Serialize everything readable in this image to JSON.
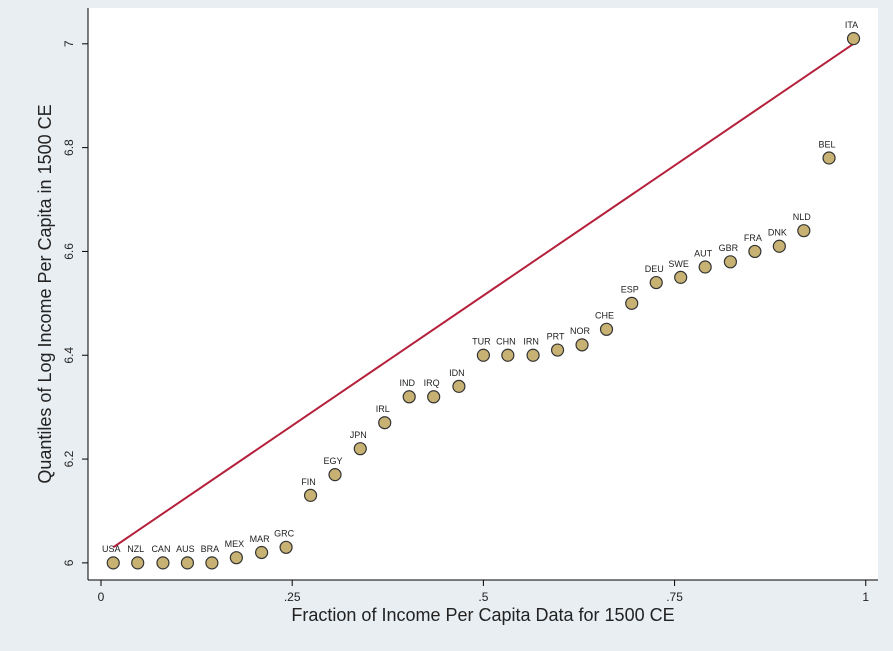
{
  "chart_data": {
    "type": "scatter",
    "x_label": "Fraction of Income Per Capita Data for 1500 CE",
    "y_label": "Quantiles of Log Income Per Capita in 1500 CE",
    "x": [
      0.016,
      0.048,
      0.081,
      0.113,
      0.145,
      0.177,
      0.21,
      0.242,
      0.274,
      0.306,
      0.339,
      0.371,
      0.403,
      0.435,
      0.468,
      0.5,
      0.532,
      0.565,
      0.597,
      0.629,
      0.661,
      0.694,
      0.726,
      0.758,
      0.79,
      0.823,
      0.855,
      0.887,
      0.919,
      0.952,
      0.984
    ],
    "series": [
      {
        "color": "#c8b273",
        "labels": [
          "USA",
          "NZL",
          "CAN",
          "AUS",
          "BRA",
          "MEX",
          "MAR",
          "GRC",
          "FIN",
          "EGY",
          "JPN",
          "IRL",
          "IND",
          "IRQ",
          "IDN",
          "TUR",
          "CHN",
          "IRN",
          "PRT",
          "NOR",
          "CHE",
          "ESP",
          "DEU",
          "SWE",
          "AUT",
          "GBR",
          "FRA",
          "DNK",
          "NLD",
          "BEL",
          "ITA"
        ],
        "values": [
          6.0,
          6.0,
          6.0,
          6.0,
          6.0,
          6.01,
          6.02,
          6.03,
          6.13,
          6.17,
          6.22,
          6.27,
          6.32,
          6.32,
          6.34,
          6.4,
          6.4,
          6.4,
          6.41,
          6.42,
          6.45,
          6.5,
          6.54,
          6.55,
          6.57,
          6.58,
          6.6,
          6.61,
          6.64,
          6.78,
          7.01
        ]
      }
    ],
    "reference_line": {
      "x": [
        0.016,
        0.984
      ],
      "y": [
        6.03,
        7.0
      ],
      "color": "#b5203a"
    },
    "xlim": [
      -0.017,
      1.016
    ],
    "ylim": [
      5.967,
      7.069
    ],
    "xticks": [
      0,
      {
        "value": 0.25,
        "label": ".25"
      },
      {
        "value": 0.5,
        "label": ".5"
      },
      {
        "value": 0.75,
        "label": ".75"
      },
      1
    ],
    "yticks": [
      6,
      6.2,
      6.4,
      6.6,
      6.8,
      7
    ]
  }
}
